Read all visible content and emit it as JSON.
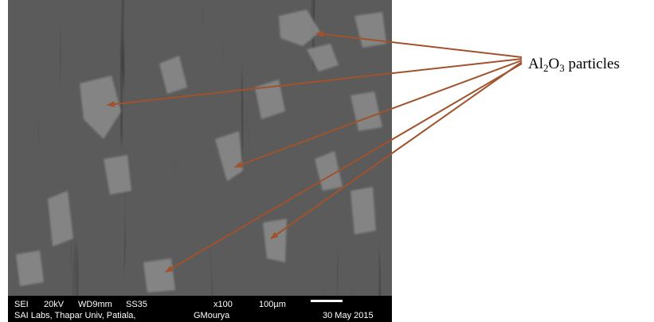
{
  "image": {
    "info_bar": {
      "row1": [
        "SEI",
        "20kV",
        "WD9mm",
        "SS35",
        "x100",
        "100µm"
      ],
      "row2": [
        "SAI Labs, Thapar Univ, Patiala,",
        "GMourya",
        "30 May 2015"
      ]
    }
  },
  "annotation": {
    "label": [
      "Al",
      "2",
      "O",
      "3",
      " particles"
    ]
  }
}
